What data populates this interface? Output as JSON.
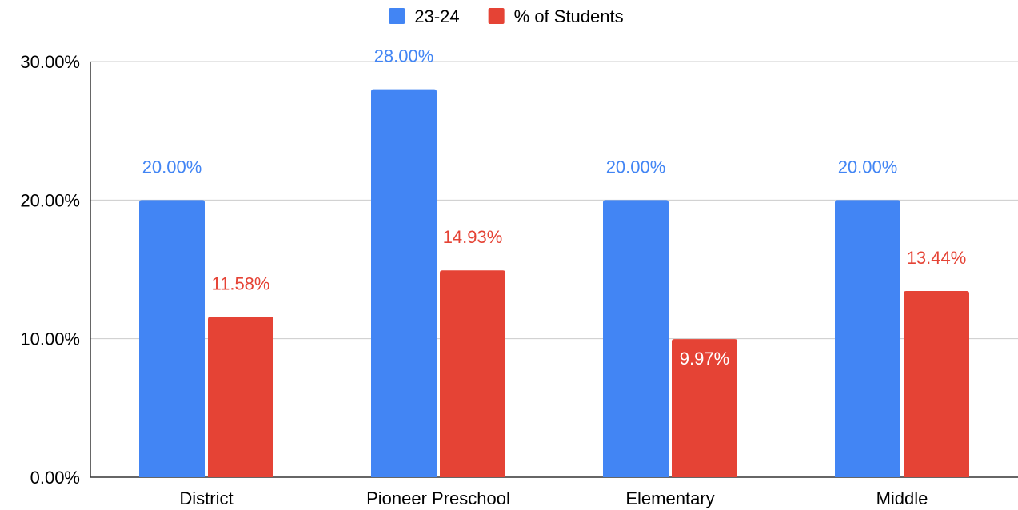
{
  "chart_data": {
    "type": "bar",
    "categories": [
      "District",
      "Pioneer Preschool",
      "Elementary",
      "Middle"
    ],
    "series": [
      {
        "name": "23-24",
        "color": "#4285f4",
        "values": [
          20.0,
          28.0,
          20.0,
          20.0
        ],
        "labels": [
          "20.00%",
          "28.00%",
          "20.00%",
          "20.00%"
        ]
      },
      {
        "name": "% of Students",
        "color": "#e54335",
        "values": [
          11.58,
          14.93,
          9.97,
          13.44
        ],
        "labels": [
          "11.58%",
          "14.93%",
          "9.97%",
          "13.44%"
        ]
      }
    ],
    "ylim": [
      0,
      30
    ],
    "yticks": [
      0,
      10,
      20,
      30
    ],
    "ytick_labels": [
      "0.00%",
      "10.00%",
      "20.00%",
      "30.00%"
    ],
    "grid": true,
    "legend": "top-center",
    "title": "",
    "xlabel": "",
    "ylabel": ""
  }
}
